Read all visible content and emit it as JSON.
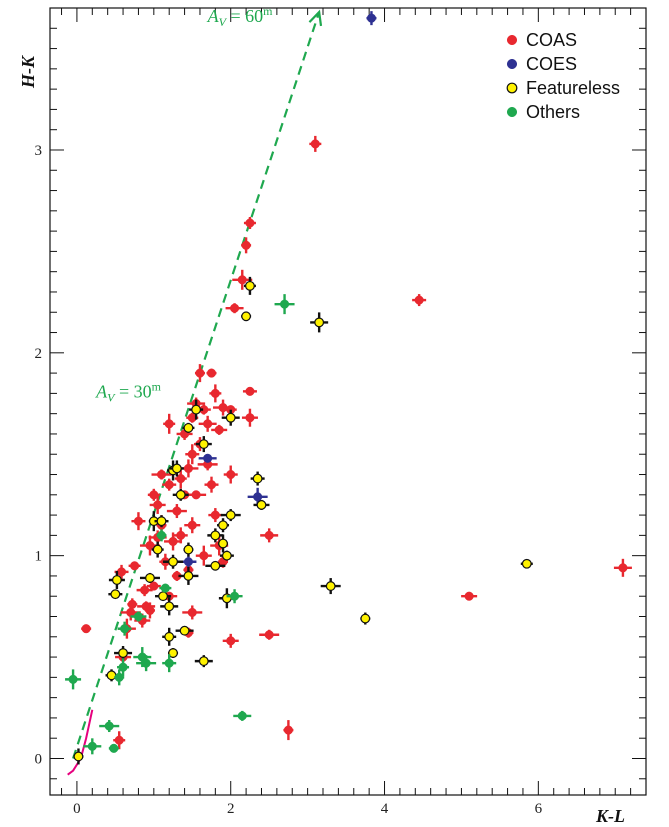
{
  "chart_data": {
    "type": "scatter",
    "xlabel": "K-L",
    "ylabel": "H-K",
    "xlim": [
      -0.35,
      7.4
    ],
    "ylim": [
      -0.18,
      3.7
    ],
    "x_ticks": [
      0,
      2,
      4,
      6
    ],
    "y_ticks": [
      0,
      1,
      2,
      3
    ],
    "legend_position": "top-right",
    "grid": false,
    "reddening_vector": {
      "from": [
        -0.05,
        0.0
      ],
      "to": [
        3.15,
        3.68
      ],
      "color": "#1fa84f",
      "annotations": [
        {
          "prefix": "A",
          "sub": "V",
          "eq": " = 60",
          "sup": "m",
          "x": 1.7,
          "y": 3.63
        },
        {
          "prefix": "A",
          "sub": "V",
          "eq": " = 30",
          "sup": "m",
          "x": 0.25,
          "y": 1.78
        }
      ]
    },
    "magenta_curve": [
      [
        -0.12,
        -0.08
      ],
      [
        -0.05,
        -0.06
      ],
      [
        0.05,
        0.0
      ],
      [
        0.12,
        0.1
      ],
      [
        0.2,
        0.24
      ]
    ],
    "series": [
      {
        "name": "COAS",
        "color": "#e8282f",
        "points": [
          [
            0.12,
            0.64
          ],
          [
            0.55,
            0.09
          ],
          [
            0.58,
            0.92
          ],
          [
            0.6,
            0.5
          ],
          [
            0.65,
            0.64
          ],
          [
            0.7,
            0.72
          ],
          [
            0.72,
            0.76
          ],
          [
            0.75,
            0.95
          ],
          [
            0.8,
            1.17
          ],
          [
            0.85,
            0.68
          ],
          [
            0.9,
            0.75
          ],
          [
            0.95,
            1.05
          ],
          [
            0.95,
            0.73
          ],
          [
            1.0,
            1.3
          ],
          [
            1.0,
            0.85
          ],
          [
            1.05,
            1.25
          ],
          [
            1.05,
            1.09
          ],
          [
            1.1,
            1.4
          ],
          [
            1.1,
            1.15
          ],
          [
            1.15,
            0.97
          ],
          [
            1.2,
            1.35
          ],
          [
            1.2,
            0.8
          ],
          [
            1.25,
            1.07
          ],
          [
            1.3,
            1.22
          ],
          [
            1.3,
            0.9
          ],
          [
            1.35,
            1.38
          ],
          [
            1.35,
            1.1
          ],
          [
            1.4,
            1.6
          ],
          [
            1.4,
            1.3
          ],
          [
            1.45,
            1.43
          ],
          [
            1.45,
            0.93
          ],
          [
            1.5,
            1.68
          ],
          [
            1.5,
            1.5
          ],
          [
            1.5,
            1.15
          ],
          [
            1.55,
            1.75
          ],
          [
            1.55,
            1.3
          ],
          [
            1.6,
            1.9
          ],
          [
            1.6,
            1.55
          ],
          [
            1.65,
            1.72
          ],
          [
            1.65,
            1.0
          ],
          [
            1.7,
            1.65
          ],
          [
            1.7,
            1.45
          ],
          [
            1.75,
            1.9
          ],
          [
            1.8,
            1.8
          ],
          [
            1.8,
            1.2
          ],
          [
            1.85,
            1.62
          ],
          [
            1.85,
            1.05
          ],
          [
            1.9,
            1.73
          ],
          [
            1.9,
            0.97
          ],
          [
            2.0,
            1.72
          ],
          [
            2.0,
            1.4
          ],
          [
            2.0,
            0.58
          ],
          [
            2.05,
            2.22
          ],
          [
            2.15,
            2.36
          ],
          [
            2.2,
            2.53
          ],
          [
            2.25,
            2.64
          ],
          [
            2.25,
            1.81
          ],
          [
            2.25,
            1.68
          ],
          [
            2.5,
            1.1
          ],
          [
            2.5,
            0.61
          ],
          [
            2.75,
            0.14
          ],
          [
            3.1,
            3.03
          ],
          [
            4.45,
            2.26
          ],
          [
            5.1,
            0.8
          ],
          [
            7.1,
            0.94
          ],
          [
            1.5,
            0.72
          ],
          [
            1.45,
            0.62
          ],
          [
            1.2,
            1.65
          ],
          [
            1.75,
            1.35
          ],
          [
            0.88,
            0.83
          ]
        ]
      },
      {
        "name": "COES",
        "color": "#2e3192",
        "points": [
          [
            1.45,
            0.97
          ],
          [
            1.7,
            1.48
          ],
          [
            2.35,
            1.29
          ],
          [
            3.83,
            3.65
          ]
        ]
      },
      {
        "name": "Featureless",
        "color": "#fff200",
        "points": [
          [
            0.02,
            0.01
          ],
          [
            0.45,
            0.41
          ],
          [
            0.5,
            0.81
          ],
          [
            0.52,
            0.88
          ],
          [
            0.6,
            0.52
          ],
          [
            0.95,
            0.89
          ],
          [
            1.0,
            1.17
          ],
          [
            1.05,
            1.03
          ],
          [
            1.1,
            1.17
          ],
          [
            1.12,
            0.8
          ],
          [
            1.2,
            0.75
          ],
          [
            1.25,
            0.97
          ],
          [
            1.25,
            0.52
          ],
          [
            1.25,
            1.42
          ],
          [
            1.3,
            1.43
          ],
          [
            1.35,
            1.3
          ],
          [
            1.4,
            0.63
          ],
          [
            1.45,
            0.9
          ],
          [
            1.45,
            1.03
          ],
          [
            1.45,
            1.63
          ],
          [
            1.55,
            1.72
          ],
          [
            1.65,
            1.55
          ],
          [
            1.65,
            0.48
          ],
          [
            1.8,
            0.95
          ],
          [
            1.9,
            1.06
          ],
          [
            1.9,
            1.15
          ],
          [
            1.95,
            1.0
          ],
          [
            1.95,
            0.79
          ],
          [
            2.0,
            1.68
          ],
          [
            2.0,
            1.2
          ],
          [
            2.2,
            2.18
          ],
          [
            2.25,
            2.33
          ],
          [
            2.35,
            1.38
          ],
          [
            2.4,
            1.25
          ],
          [
            3.15,
            2.15
          ],
          [
            3.3,
            0.85
          ],
          [
            3.75,
            0.69
          ],
          [
            5.85,
            0.96
          ],
          [
            1.2,
            0.6
          ],
          [
            1.8,
            1.1
          ]
        ]
      },
      {
        "name": "Others",
        "color": "#1fa84f",
        "points": [
          [
            -0.05,
            0.39
          ],
          [
            0.2,
            0.06
          ],
          [
            0.42,
            0.16
          ],
          [
            0.48,
            0.05
          ],
          [
            0.6,
            0.45
          ],
          [
            0.62,
            0.64
          ],
          [
            0.8,
            0.7
          ],
          [
            0.85,
            0.5
          ],
          [
            0.9,
            0.47
          ],
          [
            1.1,
            1.1
          ],
          [
            1.15,
            0.84
          ],
          [
            1.2,
            0.47
          ],
          [
            2.05,
            0.8
          ],
          [
            2.15,
            0.21
          ],
          [
            2.7,
            2.24
          ],
          [
            0.55,
            0.4
          ]
        ]
      }
    ]
  }
}
